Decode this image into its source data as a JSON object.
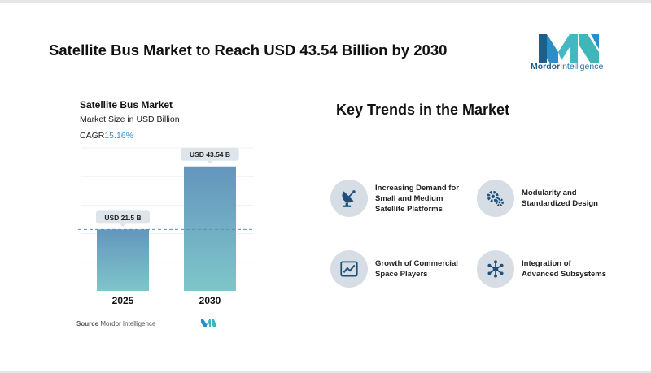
{
  "header": {
    "title": "Satellite Bus Market to Reach USD 43.54 Billion by 2030",
    "brand": {
      "name_part1": "Mordor",
      "name_part2": "Intelligence",
      "color": "#1f6fa8"
    }
  },
  "chart_panel": {
    "title": "Satellite Bus Market",
    "subtitle": "Market Size in USD Billion",
    "cagr_label": "CAGR",
    "cagr_value": "15.16%",
    "source_label": "Source",
    "source_name": "Mordor Intelligence"
  },
  "chart_data": {
    "type": "bar",
    "title": "Satellite Bus Market",
    "ylabel": "Market Size in USD Billion",
    "categories": [
      "2025",
      "2030"
    ],
    "values": [
      21.5,
      43.54
    ],
    "data_labels": [
      "USD 21.5 B",
      "USD 43.54 B"
    ],
    "ylim": [
      0,
      50
    ],
    "reference_line": 21.5,
    "bar_color_top": "#6495bd",
    "bar_color_bottom": "#7ec6c9"
  },
  "trends": {
    "title": "Key Trends in the Market",
    "items": [
      {
        "label": "Increasing Demand for\nSmall and Medium\nSatellite Platforms",
        "icon": "satellite-dish-icon"
      },
      {
        "label": "Modularity and\nStandardized Design",
        "icon": "gears-icon"
      },
      {
        "label": "Growth of Commercial\nSpace Players",
        "icon": "growth-chart-icon"
      },
      {
        "label": "Integration of\nAdvanced Subsystems",
        "icon": "network-icon"
      }
    ]
  }
}
